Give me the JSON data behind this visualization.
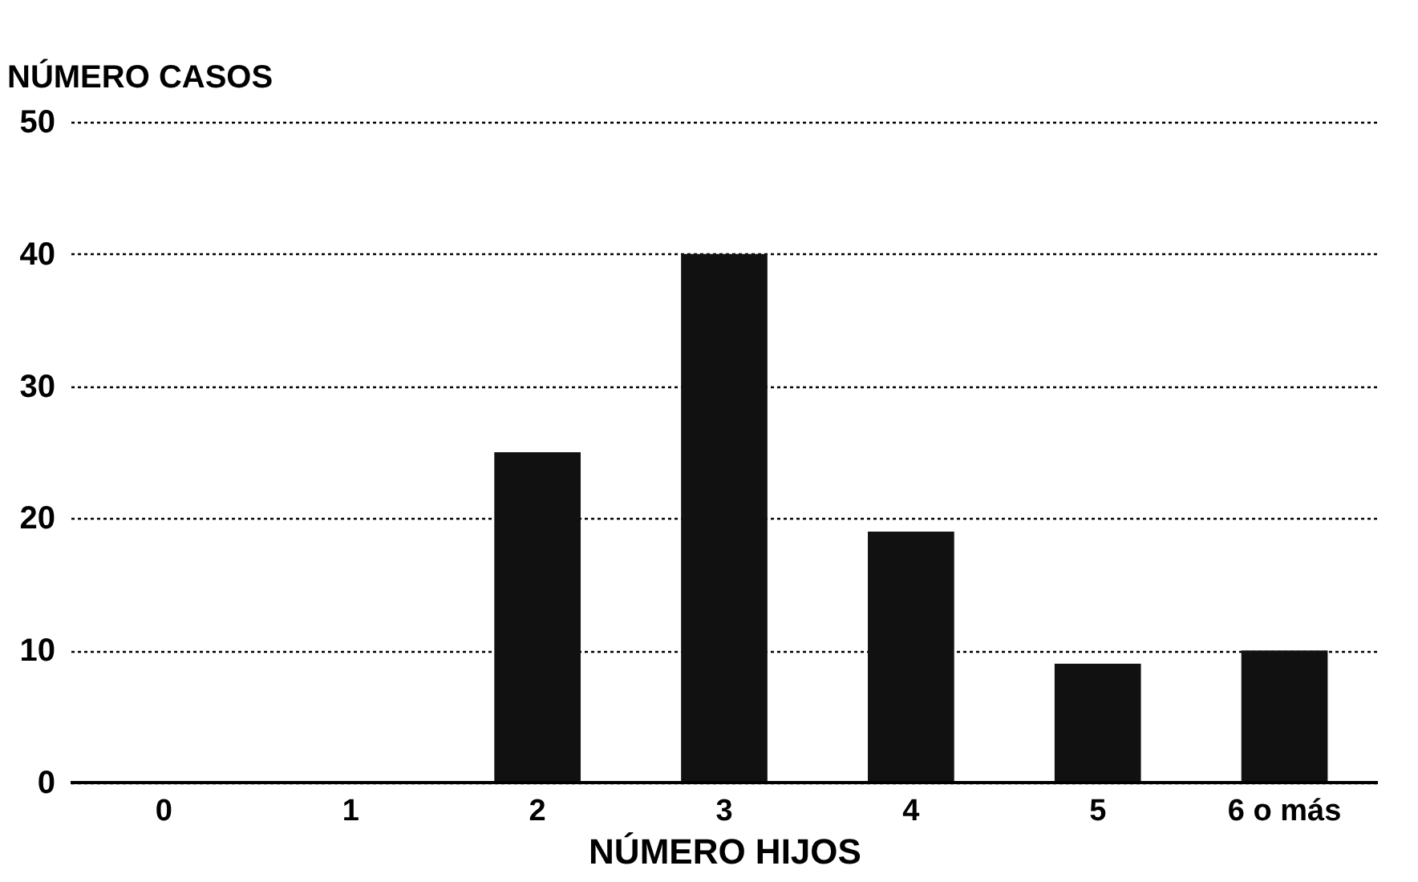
{
  "chart_data": {
    "type": "bar",
    "xlabel": "NÚMERO HIJOS",
    "ylabel": "NÚMERO CASOS",
    "categories": [
      "0",
      "1",
      "2",
      "3",
      "4",
      "5",
      "6 o más"
    ],
    "values": [
      0,
      0,
      25,
      40,
      19,
      9,
      10
    ],
    "color": "#111111",
    "ylim": [
      0,
      50
    ],
    "yticks": [
      0,
      10,
      20,
      30,
      40,
      50
    ],
    "grid": "y"
  }
}
